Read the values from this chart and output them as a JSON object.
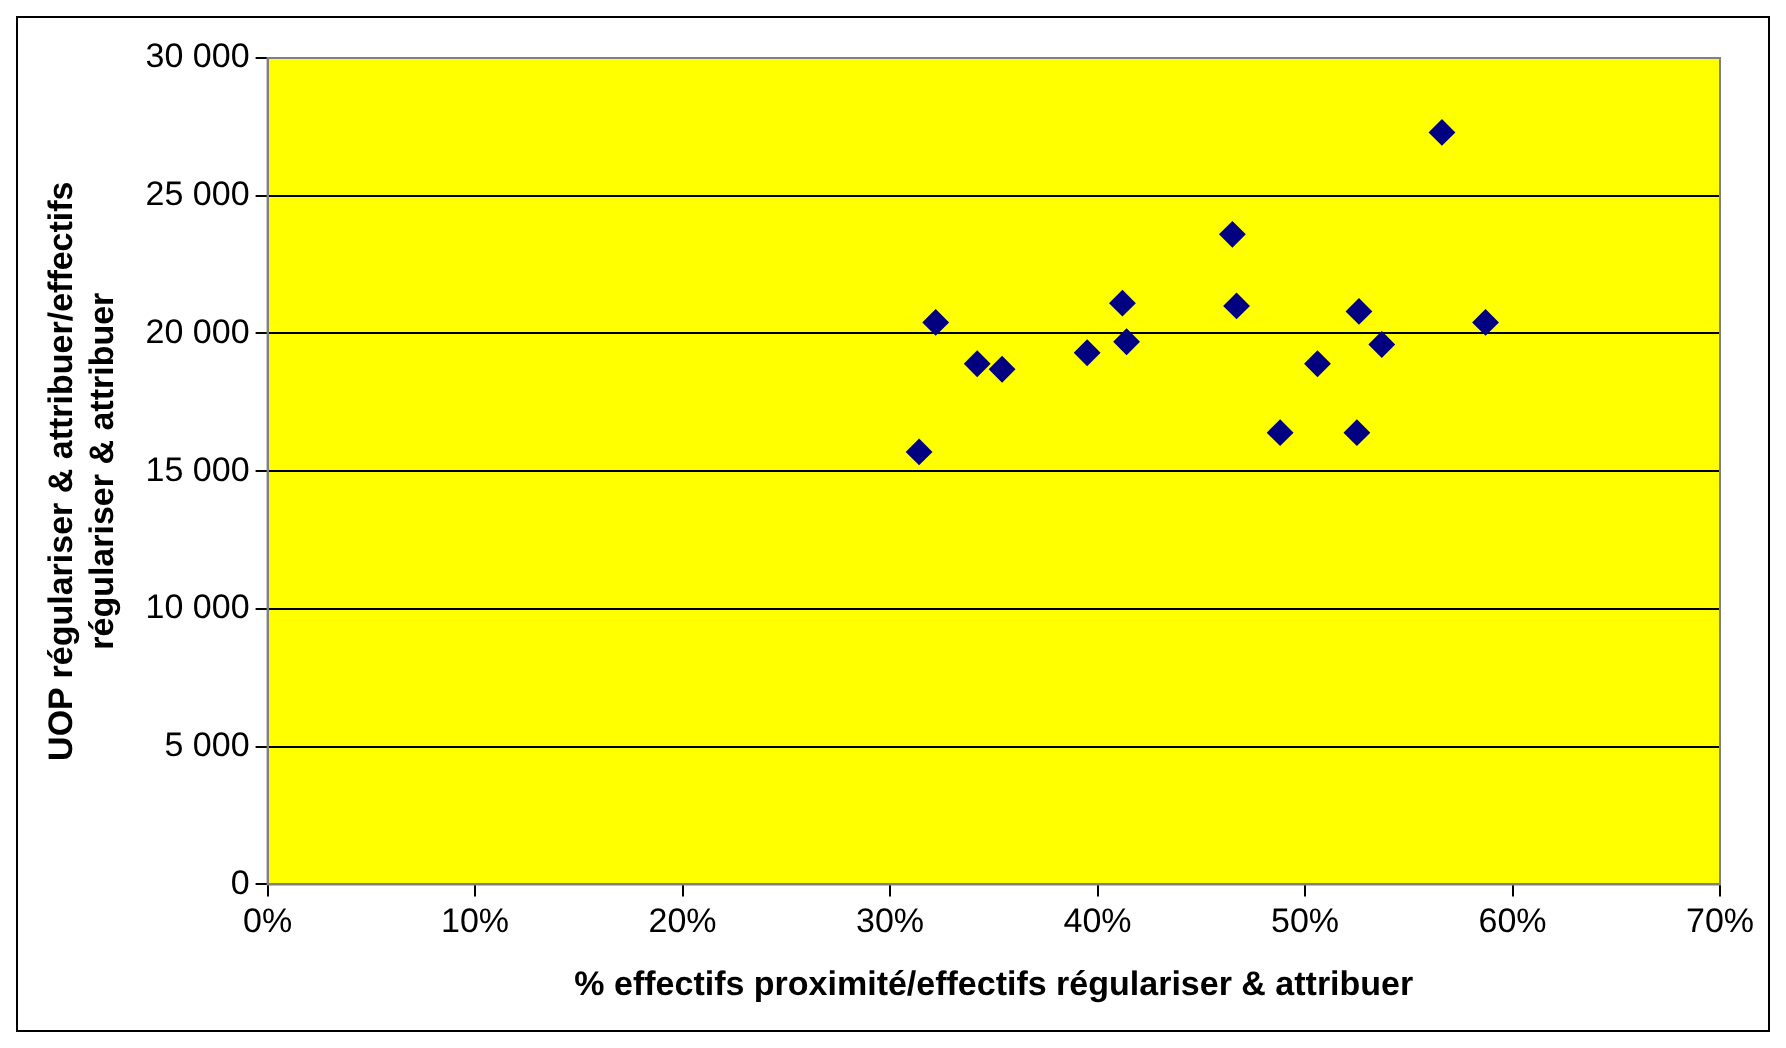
{
  "chart_data": {
    "type": "scatter",
    "xlabel": "% effectifs proximité/effectifs régulariser & attribuer",
    "ylabel": "UOP régulariser & attribuer/effectifs régulariser & attribuer",
    "series": [
      {
        "color": "#000080",
        "x": [
          31.4,
          32.2,
          34.2,
          35.4,
          39.5,
          41.2,
          41.4,
          46.5,
          46.7,
          48.8,
          50.6,
          52.5,
          52.6,
          53.7,
          56.6,
          58.7
        ],
        "values": [
          15700,
          20400,
          18900,
          18700,
          19300,
          21100,
          19700,
          23600,
          21000,
          16400,
          18900,
          16400,
          20800,
          19600,
          27300,
          20400
        ]
      }
    ],
    "xlim": [
      0,
      70
    ],
    "xticks": [
      {
        "value": 0,
        "label": "0%"
      },
      {
        "value": 10,
        "label": "10%"
      },
      {
        "value": 20,
        "label": "20%"
      },
      {
        "value": 30,
        "label": "30%"
      },
      {
        "value": 40,
        "label": "40%"
      },
      {
        "value": 50,
        "label": "50%"
      },
      {
        "value": 60,
        "label": "60%"
      },
      {
        "value": 70,
        "label": "70%"
      }
    ],
    "ylim": [
      0,
      30000
    ],
    "yticks": [
      {
        "value": 0,
        "label": "0"
      },
      {
        "value": 5000,
        "label": "5 000"
      },
      {
        "value": 10000,
        "label": "10 000"
      },
      {
        "value": 15000,
        "label": "15 000"
      },
      {
        "value": 20000,
        "label": "20 000"
      },
      {
        "value": 25000,
        "label": "25 000"
      },
      {
        "value": 30000,
        "label": "30 000"
      }
    ],
    "grid": "y",
    "legend": false,
    "marker": "diamond"
  }
}
